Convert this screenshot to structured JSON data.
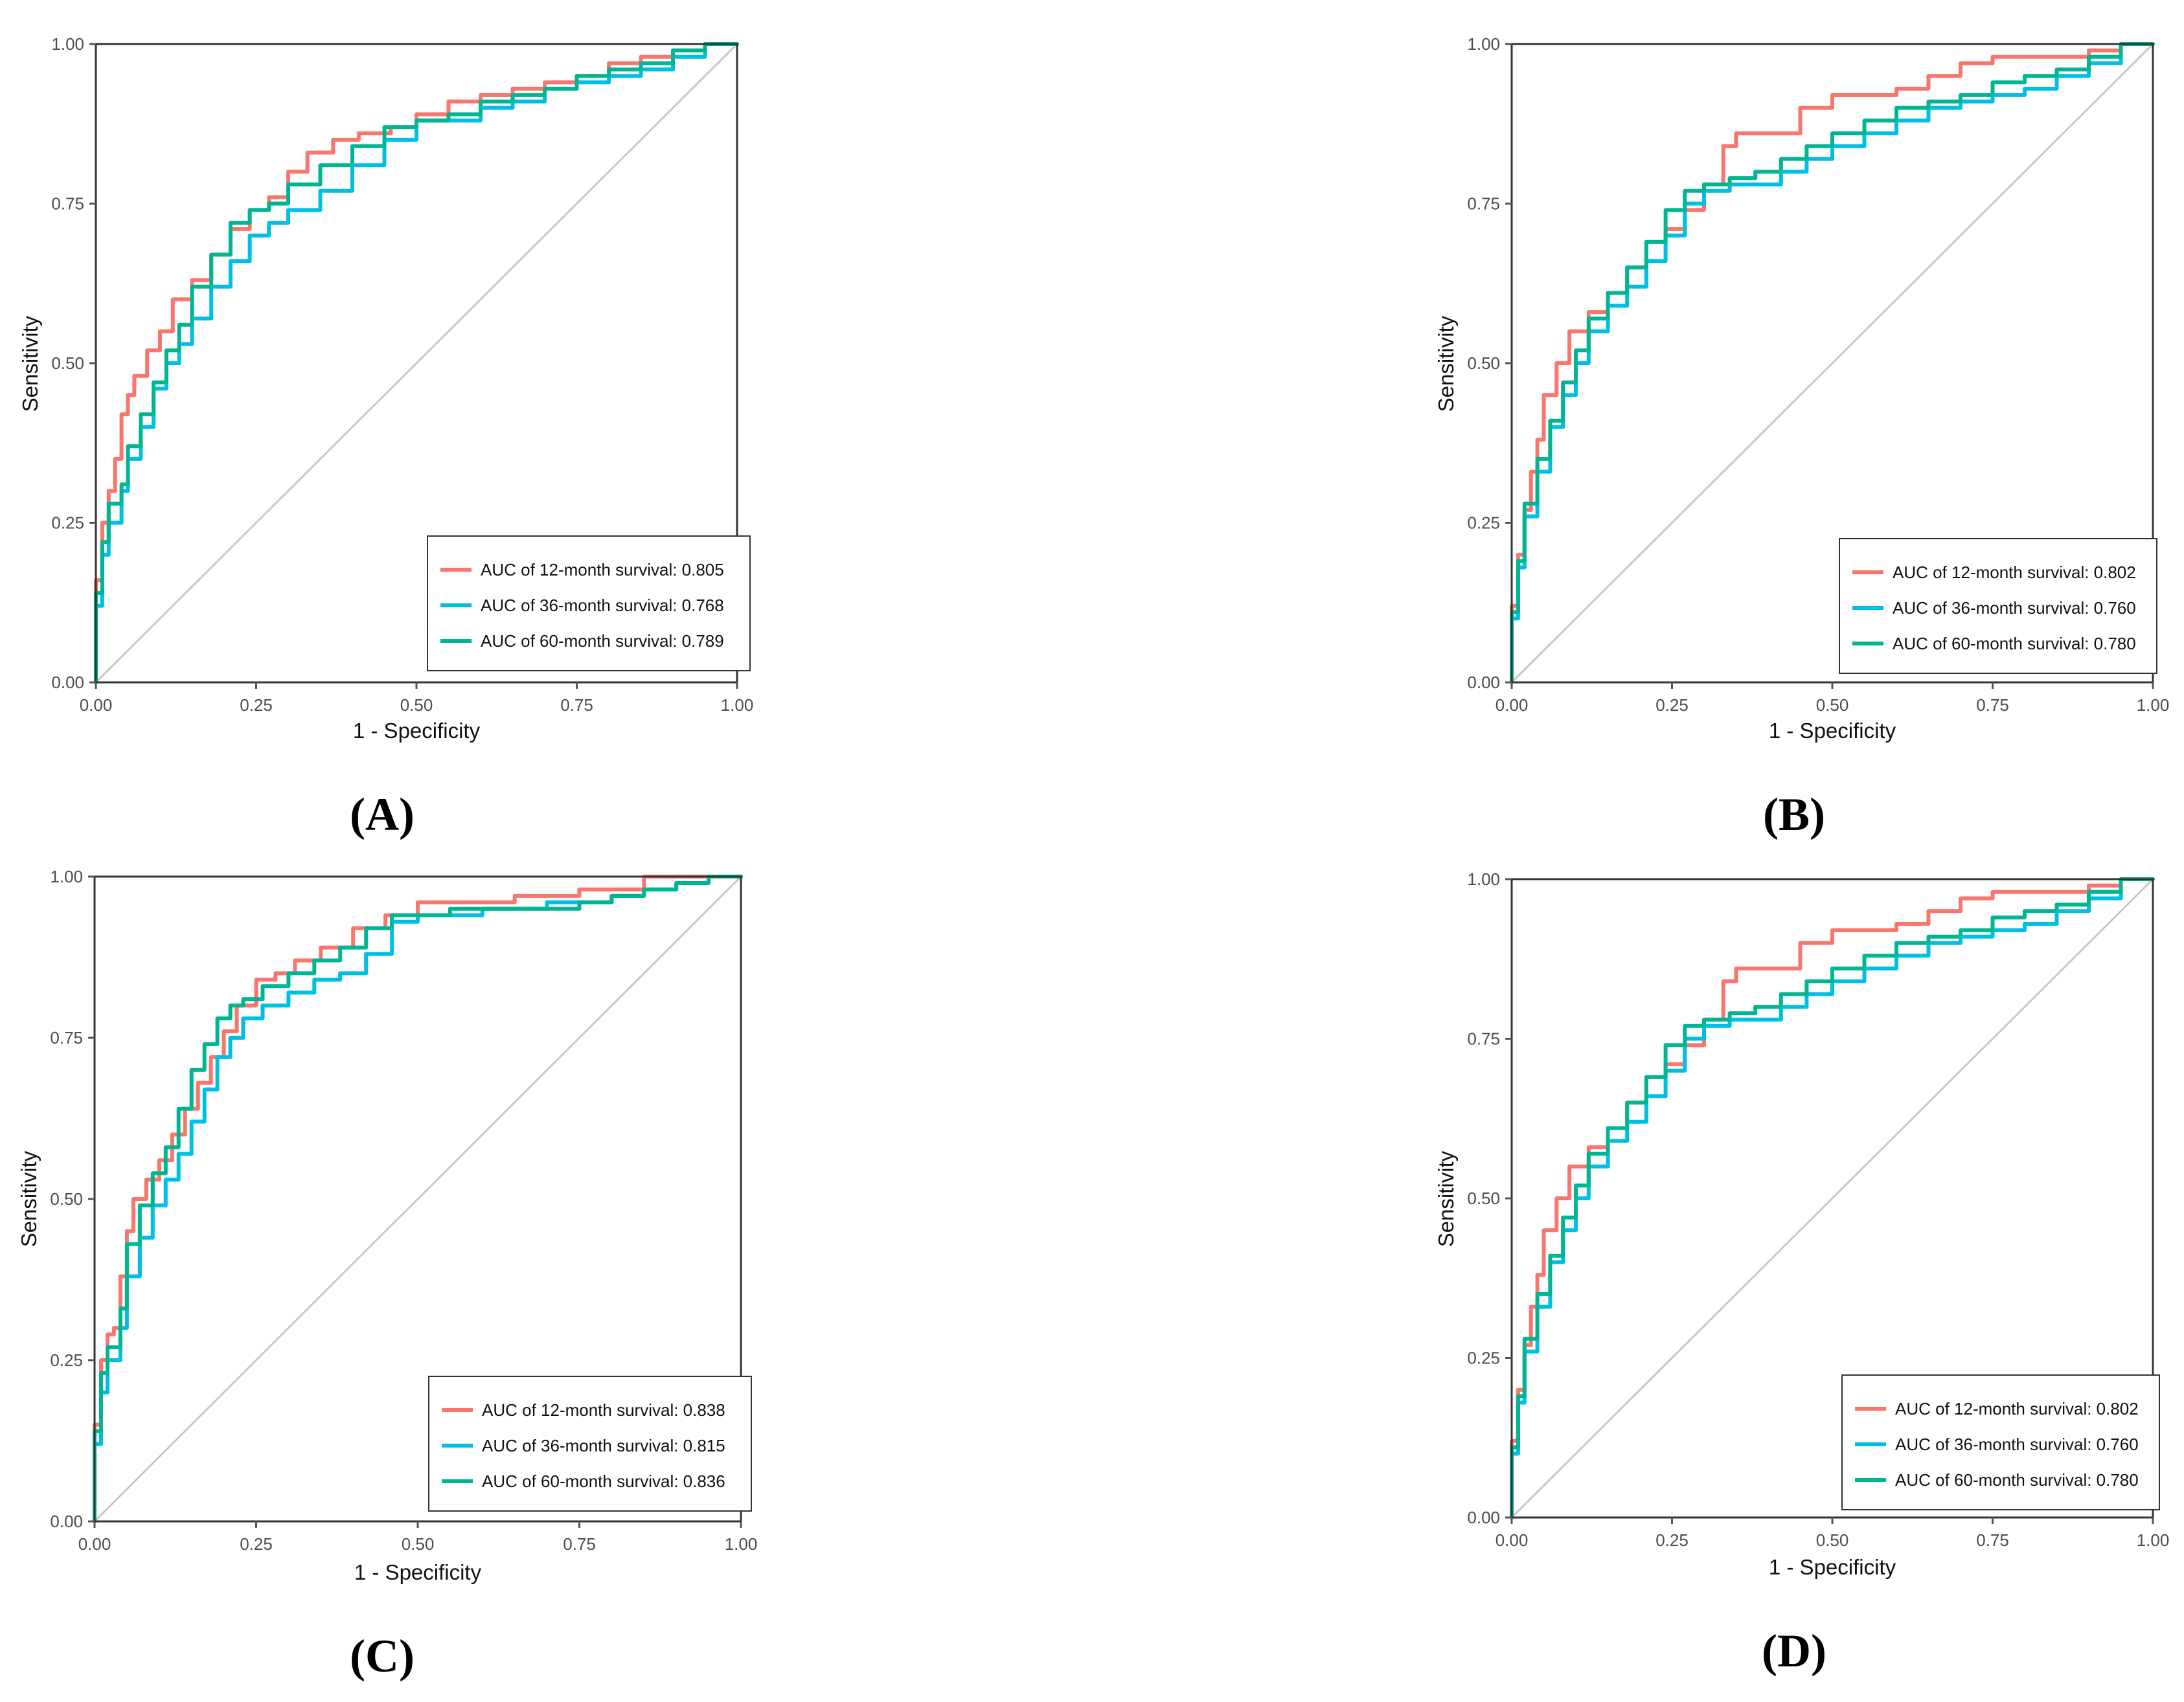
{
  "figure": {
    "diagonal_color": "#c8c8c8",
    "frame_color": "#333333",
    "tick_color": "#555555"
  },
  "chart_data": [
    {
      "panel": "(A)",
      "type": "line",
      "xlabel": "1 - Specificity",
      "ylabel": "Sensitivity",
      "xlim": [
        0,
        1
      ],
      "ylim": [
        0,
        1
      ],
      "xticks": [
        "0.00",
        "0.25",
        "0.50",
        "0.75",
        "1.00"
      ],
      "yticks": [
        "0.00",
        "0.25",
        "0.50",
        "0.75",
        "1.00"
      ],
      "legend_position": "bottom-right",
      "diagonal": true,
      "series": [
        {
          "name": "AUC of 12-month survival: 0.805",
          "color": "#f8766d",
          "x": [
            0,
            0.01,
            0.02,
            0.03,
            0.04,
            0.05,
            0.06,
            0.08,
            0.1,
            0.12,
            0.15,
            0.18,
            0.21,
            0.24,
            0.27,
            0.3,
            0.33,
            0.37,
            0.41,
            0.46,
            0.5,
            0.55,
            0.6,
            0.65,
            0.7,
            0.75,
            0.8,
            0.85,
            0.9,
            0.95,
            1.0
          ],
          "y": [
            0,
            0.16,
            0.25,
            0.3,
            0.35,
            0.42,
            0.45,
            0.48,
            0.52,
            0.55,
            0.6,
            0.63,
            0.67,
            0.71,
            0.74,
            0.76,
            0.8,
            0.83,
            0.85,
            0.86,
            0.87,
            0.89,
            0.91,
            0.92,
            0.93,
            0.94,
            0.95,
            0.97,
            0.98,
            0.99,
            1.0
          ]
        },
        {
          "name": "AUC of 36-month survival: 0.768",
          "color": "#00bfe4",
          "x": [
            0,
            0.01,
            0.02,
            0.04,
            0.05,
            0.07,
            0.09,
            0.11,
            0.13,
            0.15,
            0.18,
            0.21,
            0.24,
            0.27,
            0.3,
            0.35,
            0.4,
            0.45,
            0.5,
            0.55,
            0.6,
            0.65,
            0.7,
            0.75,
            0.8,
            0.85,
            0.9,
            0.95,
            1.0
          ],
          "y": [
            0,
            0.12,
            0.2,
            0.25,
            0.3,
            0.35,
            0.4,
            0.46,
            0.5,
            0.53,
            0.57,
            0.62,
            0.66,
            0.7,
            0.72,
            0.74,
            0.77,
            0.81,
            0.85,
            0.88,
            0.88,
            0.9,
            0.91,
            0.93,
            0.94,
            0.95,
            0.96,
            0.98,
            1.0
          ]
        },
        {
          "name": "AUC of 60-month survival: 0.789",
          "color": "#00b692",
          "x": [
            0,
            0.01,
            0.02,
            0.04,
            0.05,
            0.07,
            0.09,
            0.11,
            0.13,
            0.15,
            0.18,
            0.21,
            0.24,
            0.27,
            0.3,
            0.35,
            0.4,
            0.45,
            0.5,
            0.55,
            0.6,
            0.65,
            0.7,
            0.75,
            0.8,
            0.85,
            0.9,
            0.95,
            1.0
          ],
          "y": [
            0,
            0.14,
            0.22,
            0.28,
            0.31,
            0.37,
            0.42,
            0.47,
            0.52,
            0.56,
            0.62,
            0.67,
            0.72,
            0.74,
            0.75,
            0.78,
            0.81,
            0.84,
            0.87,
            0.88,
            0.89,
            0.91,
            0.92,
            0.93,
            0.95,
            0.96,
            0.97,
            0.99,
            1.0
          ]
        }
      ]
    },
    {
      "panel": "(B)",
      "type": "line",
      "xlabel": "1 - Specificity",
      "ylabel": "Sensitivity",
      "xlim": [
        0,
        1
      ],
      "ylim": [
        0,
        1
      ],
      "xticks": [
        "0.00",
        "0.25",
        "0.50",
        "0.75",
        "1.00"
      ],
      "yticks": [
        "0.00",
        "0.25",
        "0.50",
        "0.75",
        "1.00"
      ],
      "legend_position": "bottom-right",
      "diagonal": true,
      "series": [
        {
          "name": "AUC of 12-month survival: 0.802",
          "color": "#f8766d",
          "x": [
            0,
            0.01,
            0.02,
            0.03,
            0.04,
            0.05,
            0.07,
            0.09,
            0.12,
            0.15,
            0.18,
            0.21,
            0.24,
            0.27,
            0.3,
            0.33,
            0.35,
            0.37,
            0.4,
            0.45,
            0.5,
            0.55,
            0.6,
            0.65,
            0.7,
            0.75,
            0.8,
            0.85,
            0.9,
            0.95,
            1.0
          ],
          "y": [
            0,
            0.12,
            0.2,
            0.27,
            0.33,
            0.38,
            0.45,
            0.5,
            0.55,
            0.58,
            0.61,
            0.65,
            0.69,
            0.71,
            0.74,
            0.78,
            0.84,
            0.86,
            0.86,
            0.86,
            0.9,
            0.92,
            0.92,
            0.93,
            0.95,
            0.97,
            0.98,
            0.98,
            0.98,
            0.99,
            1.0
          ]
        },
        {
          "name": "AUC of 36-month survival: 0.760",
          "color": "#00bfe4",
          "x": [
            0,
            0.01,
            0.02,
            0.04,
            0.06,
            0.08,
            0.1,
            0.12,
            0.15,
            0.18,
            0.21,
            0.24,
            0.27,
            0.3,
            0.34,
            0.38,
            0.42,
            0.46,
            0.5,
            0.55,
            0.6,
            0.65,
            0.7,
            0.75,
            0.8,
            0.85,
            0.9,
            0.95,
            1.0
          ],
          "y": [
            0,
            0.1,
            0.18,
            0.26,
            0.33,
            0.4,
            0.45,
            0.5,
            0.55,
            0.59,
            0.62,
            0.66,
            0.7,
            0.75,
            0.77,
            0.78,
            0.78,
            0.8,
            0.82,
            0.84,
            0.86,
            0.88,
            0.9,
            0.91,
            0.92,
            0.93,
            0.95,
            0.97,
            1.0
          ]
        },
        {
          "name": "AUC of 60-month survival: 0.780",
          "color": "#00b692",
          "x": [
            0,
            0.01,
            0.02,
            0.04,
            0.06,
            0.08,
            0.1,
            0.12,
            0.15,
            0.18,
            0.21,
            0.24,
            0.27,
            0.3,
            0.34,
            0.38,
            0.42,
            0.46,
            0.5,
            0.55,
            0.6,
            0.65,
            0.7,
            0.75,
            0.8,
            0.85,
            0.9,
            0.95,
            1.0
          ],
          "y": [
            0,
            0.11,
            0.19,
            0.28,
            0.35,
            0.41,
            0.47,
            0.52,
            0.57,
            0.61,
            0.65,
            0.69,
            0.74,
            0.77,
            0.78,
            0.79,
            0.8,
            0.82,
            0.84,
            0.86,
            0.88,
            0.9,
            0.91,
            0.92,
            0.94,
            0.95,
            0.96,
            0.98,
            1.0
          ]
        }
      ]
    },
    {
      "panel": "(C)",
      "type": "line",
      "xlabel": "1 - Specificity",
      "ylabel": "Sensitivity",
      "xlim": [
        0,
        1
      ],
      "ylim": [
        0,
        1
      ],
      "xticks": [
        "0.00",
        "0.25",
        "0.50",
        "0.75",
        "1.00"
      ],
      "yticks": [
        "0.00",
        "0.25",
        "0.50",
        "0.75",
        "1.00"
      ],
      "legend_position": "bottom-right",
      "diagonal": true,
      "series": [
        {
          "name": "AUC of 12-month survival: 0.838",
          "color": "#f8766d",
          "x": [
            0,
            0.01,
            0.02,
            0.03,
            0.04,
            0.05,
            0.06,
            0.08,
            0.1,
            0.12,
            0.14,
            0.16,
            0.18,
            0.2,
            0.22,
            0.25,
            0.28,
            0.31,
            0.35,
            0.4,
            0.45,
            0.5,
            0.55,
            0.6,
            0.65,
            0.7,
            0.75,
            0.8,
            0.85,
            0.9,
            0.95,
            1.0
          ],
          "y": [
            0,
            0.15,
            0.25,
            0.29,
            0.3,
            0.38,
            0.45,
            0.5,
            0.53,
            0.56,
            0.6,
            0.64,
            0.68,
            0.72,
            0.76,
            0.8,
            0.84,
            0.85,
            0.87,
            0.89,
            0.92,
            0.94,
            0.96,
            0.96,
            0.96,
            0.97,
            0.97,
            0.98,
            0.98,
            1.0,
            1.0,
            1.0
          ]
        },
        {
          "name": "AUC of 36-month survival: 0.815",
          "color": "#00bfe4",
          "x": [
            0,
            0.01,
            0.02,
            0.04,
            0.05,
            0.07,
            0.09,
            0.11,
            0.13,
            0.15,
            0.17,
            0.19,
            0.21,
            0.23,
            0.26,
            0.3,
            0.34,
            0.38,
            0.42,
            0.46,
            0.5,
            0.55,
            0.6,
            0.65,
            0.7,
            0.75,
            0.8,
            0.85,
            0.9,
            0.95,
            1.0
          ],
          "y": [
            0,
            0.12,
            0.2,
            0.25,
            0.3,
            0.38,
            0.44,
            0.49,
            0.53,
            0.57,
            0.62,
            0.67,
            0.72,
            0.75,
            0.78,
            0.8,
            0.82,
            0.84,
            0.85,
            0.88,
            0.93,
            0.94,
            0.94,
            0.95,
            0.95,
            0.96,
            0.96,
            0.97,
            0.98,
            0.99,
            1.0
          ]
        },
        {
          "name": "AUC of 60-month survival: 0.836",
          "color": "#00b692",
          "x": [
            0,
            0.01,
            0.02,
            0.04,
            0.05,
            0.07,
            0.09,
            0.11,
            0.13,
            0.15,
            0.17,
            0.19,
            0.21,
            0.23,
            0.26,
            0.3,
            0.34,
            0.38,
            0.42,
            0.46,
            0.5,
            0.55,
            0.6,
            0.65,
            0.7,
            0.75,
            0.8,
            0.85,
            0.9,
            0.95,
            1.0
          ],
          "y": [
            0,
            0.14,
            0.23,
            0.27,
            0.33,
            0.43,
            0.49,
            0.54,
            0.58,
            0.64,
            0.7,
            0.74,
            0.78,
            0.8,
            0.81,
            0.83,
            0.85,
            0.87,
            0.89,
            0.92,
            0.94,
            0.94,
            0.95,
            0.95,
            0.95,
            0.95,
            0.96,
            0.97,
            0.98,
            0.99,
            1.0
          ]
        }
      ]
    },
    {
      "panel": "(D)",
      "type": "line",
      "xlabel": "1 - Specificity",
      "ylabel": "Sensitivity",
      "xlim": [
        0,
        1
      ],
      "ylim": [
        0,
        1
      ],
      "xticks": [
        "0.00",
        "0.25",
        "0.50",
        "0.75",
        "1.00"
      ],
      "yticks": [
        "0.00",
        "0.25",
        "0.50",
        "0.75",
        "1.00"
      ],
      "legend_position": "bottom-right",
      "diagonal": true,
      "series": [
        {
          "name": "AUC of 12-month survival: 0.802",
          "color": "#f8766d",
          "x": [
            0,
            0.01,
            0.02,
            0.03,
            0.04,
            0.05,
            0.07,
            0.09,
            0.12,
            0.15,
            0.18,
            0.21,
            0.24,
            0.27,
            0.3,
            0.33,
            0.35,
            0.37,
            0.4,
            0.45,
            0.5,
            0.55,
            0.6,
            0.65,
            0.7,
            0.75,
            0.8,
            0.85,
            0.9,
            0.95,
            1.0
          ],
          "y": [
            0,
            0.12,
            0.2,
            0.27,
            0.33,
            0.38,
            0.45,
            0.5,
            0.55,
            0.58,
            0.61,
            0.65,
            0.69,
            0.71,
            0.74,
            0.78,
            0.84,
            0.86,
            0.86,
            0.86,
            0.9,
            0.92,
            0.92,
            0.93,
            0.95,
            0.97,
            0.98,
            0.98,
            0.98,
            0.99,
            1.0
          ]
        },
        {
          "name": "AUC of 36-month survival: 0.760",
          "color": "#00bfe4",
          "x": [
            0,
            0.01,
            0.02,
            0.04,
            0.06,
            0.08,
            0.1,
            0.12,
            0.15,
            0.18,
            0.21,
            0.24,
            0.27,
            0.3,
            0.34,
            0.38,
            0.42,
            0.46,
            0.5,
            0.55,
            0.6,
            0.65,
            0.7,
            0.75,
            0.8,
            0.85,
            0.9,
            0.95,
            1.0
          ],
          "y": [
            0,
            0.1,
            0.18,
            0.26,
            0.33,
            0.4,
            0.45,
            0.5,
            0.55,
            0.59,
            0.62,
            0.66,
            0.7,
            0.75,
            0.77,
            0.78,
            0.78,
            0.8,
            0.82,
            0.84,
            0.86,
            0.88,
            0.9,
            0.91,
            0.92,
            0.93,
            0.95,
            0.97,
            1.0
          ]
        },
        {
          "name": "AUC of 60-month survival: 0.780",
          "color": "#00b692",
          "x": [
            0,
            0.01,
            0.02,
            0.04,
            0.06,
            0.08,
            0.1,
            0.12,
            0.15,
            0.18,
            0.21,
            0.24,
            0.27,
            0.3,
            0.34,
            0.38,
            0.42,
            0.46,
            0.5,
            0.55,
            0.6,
            0.65,
            0.7,
            0.75,
            0.8,
            0.85,
            0.9,
            0.95,
            1.0
          ],
          "y": [
            0,
            0.11,
            0.19,
            0.28,
            0.35,
            0.41,
            0.47,
            0.52,
            0.57,
            0.61,
            0.65,
            0.69,
            0.74,
            0.77,
            0.78,
            0.79,
            0.8,
            0.82,
            0.84,
            0.86,
            0.88,
            0.9,
            0.91,
            0.92,
            0.94,
            0.95,
            0.96,
            0.98,
            1.0
          ]
        }
      ]
    }
  ]
}
